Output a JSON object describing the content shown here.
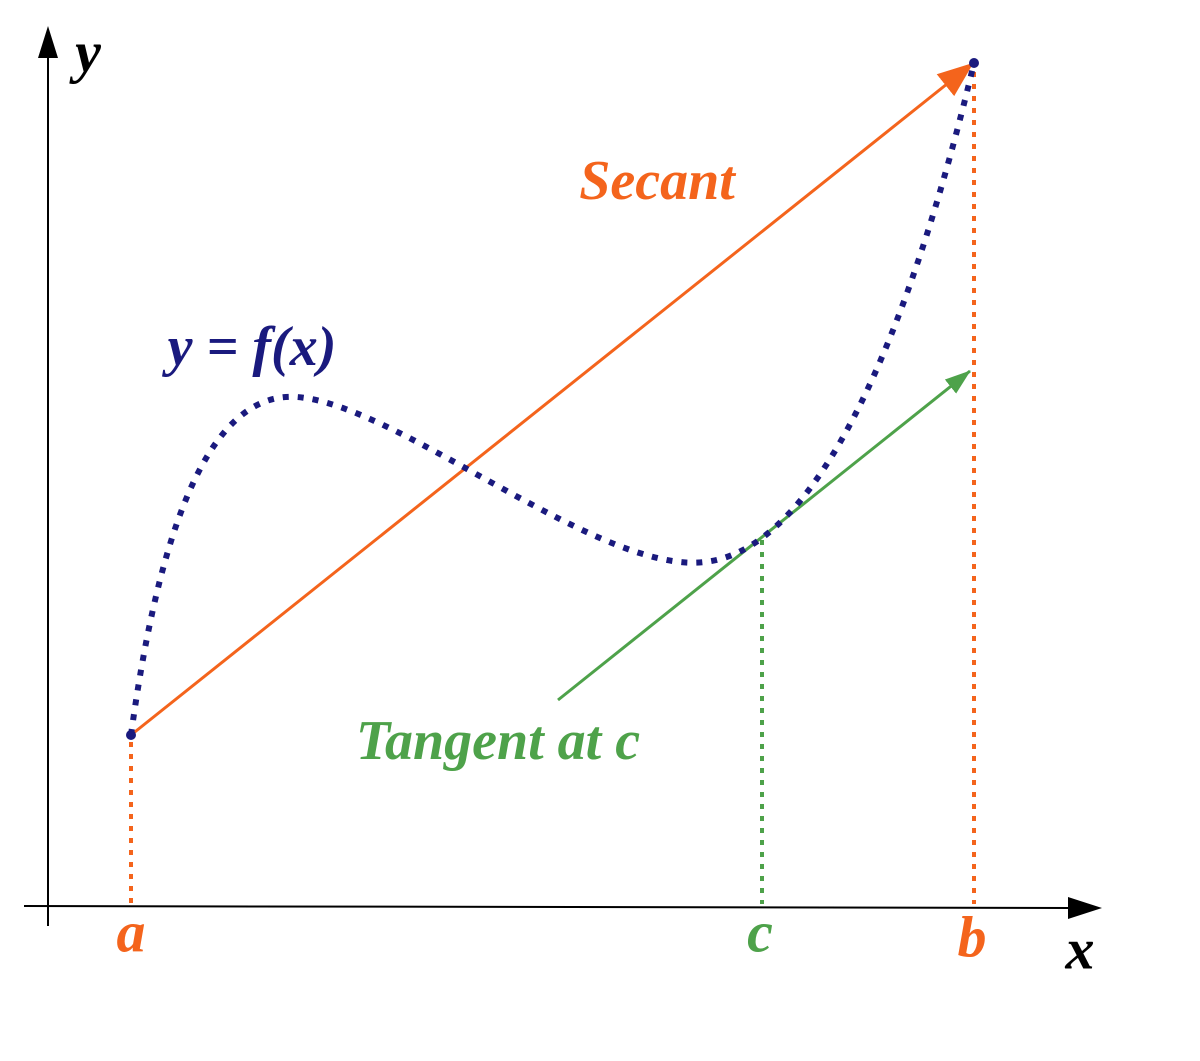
{
  "axes": {
    "y_label": "y",
    "x_label": "x"
  },
  "points": {
    "a": "a",
    "b": "b",
    "c": "c"
  },
  "labels": {
    "secant": "Secant",
    "tangent": "Tangent at c",
    "function": "y = f(x)"
  }
}
